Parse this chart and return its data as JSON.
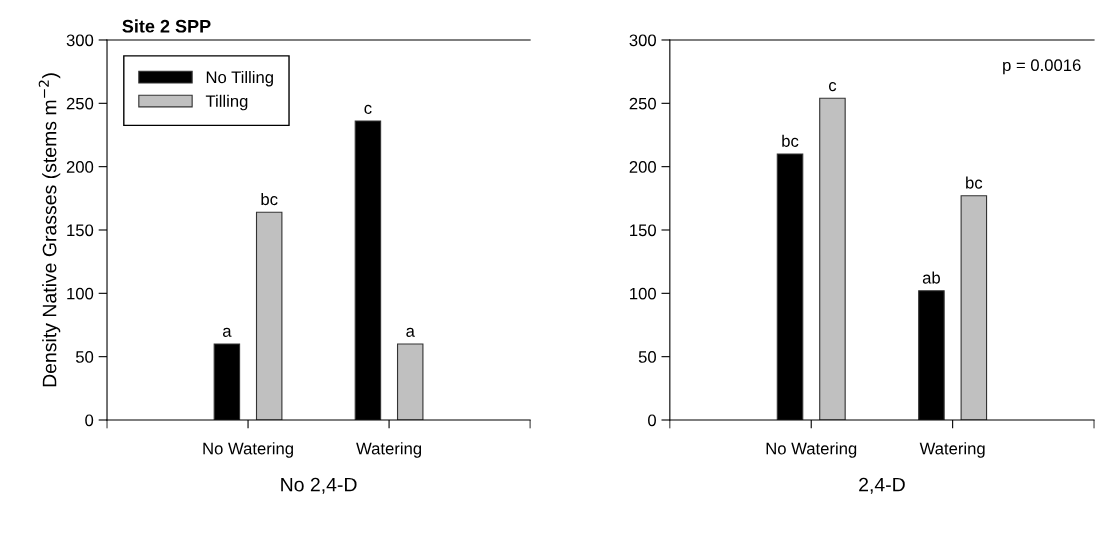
{
  "chart_data": [
    {
      "type": "bar",
      "title": "Site 2 SPP",
      "xlabel": "No 2,4-D",
      "ylabel": "Density Native Grasses (stems m$^{−2}$)",
      "categories": [
        "No Watering",
        "Watering"
      ],
      "series": [
        {
          "name": "No Tilling",
          "color": "#000000",
          "values": [
            60,
            236
          ],
          "value_labels": [
            "a",
            "c"
          ]
        },
        {
          "name": "Tilling",
          "color": "#c0c0c0",
          "values": [
            164,
            60
          ],
          "value_labels": [
            "bc",
            "a"
          ]
        }
      ],
      "ylim": [
        0,
        300
      ],
      "yticks": [
        0,
        50,
        100,
        150,
        200,
        250,
        300
      ],
      "legend": "top left"
    },
    {
      "type": "bar",
      "xlabel": "2,4-D",
      "categories": [
        "No Watering",
        "Watering"
      ],
      "series": [
        {
          "color": "#000000",
          "values": [
            210,
            102
          ],
          "value_labels": [
            "bc",
            "ab"
          ]
        },
        {
          "color": "#c0c0c0",
          "values": [
            254,
            177
          ],
          "value_labels": [
            "c",
            "bc"
          ]
        }
      ],
      "ylim": [
        0,
        300
      ],
      "yticks": [
        0,
        50,
        100,
        150,
        200,
        250,
        300
      ],
      "annotations": [
        "p = 0.0016"
      ]
    }
  ]
}
